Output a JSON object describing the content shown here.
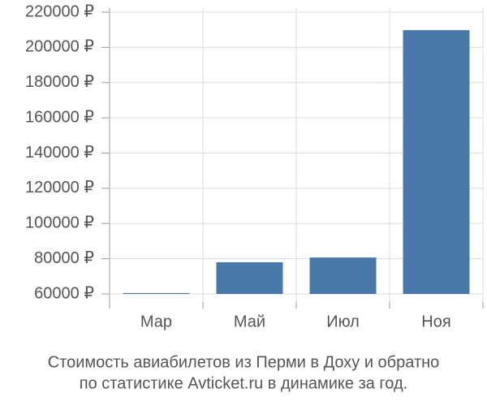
{
  "chart_data": {
    "type": "bar",
    "title": [
      "Стоимость авиабилетов из Перми в Доху и обратно",
      "по статистике Avticket.ru в динамике за год."
    ],
    "categories": [
      "Мар",
      "Май",
      "Июл",
      "Ноя"
    ],
    "values": [
      60500,
      78000,
      80700,
      209800
    ],
    "color": "#4a78a8",
    "ylim": [
      60000,
      220000
    ],
    "yticks": [
      {
        "value": 60000,
        "label": "60000 ₽"
      },
      {
        "value": 80000,
        "label": "80000 ₽"
      },
      {
        "value": 100000,
        "label": "100000 ₽"
      },
      {
        "value": 120000,
        "label": "120000 ₽"
      },
      {
        "value": 140000,
        "label": "140000 ₽"
      },
      {
        "value": 160000,
        "label": "160000 ₽"
      },
      {
        "value": 180000,
        "label": "180000 ₽"
      },
      {
        "value": 200000,
        "label": "200000 ₽"
      },
      {
        "value": 220000,
        "label": "220000 ₽"
      }
    ],
    "grid": true
  }
}
